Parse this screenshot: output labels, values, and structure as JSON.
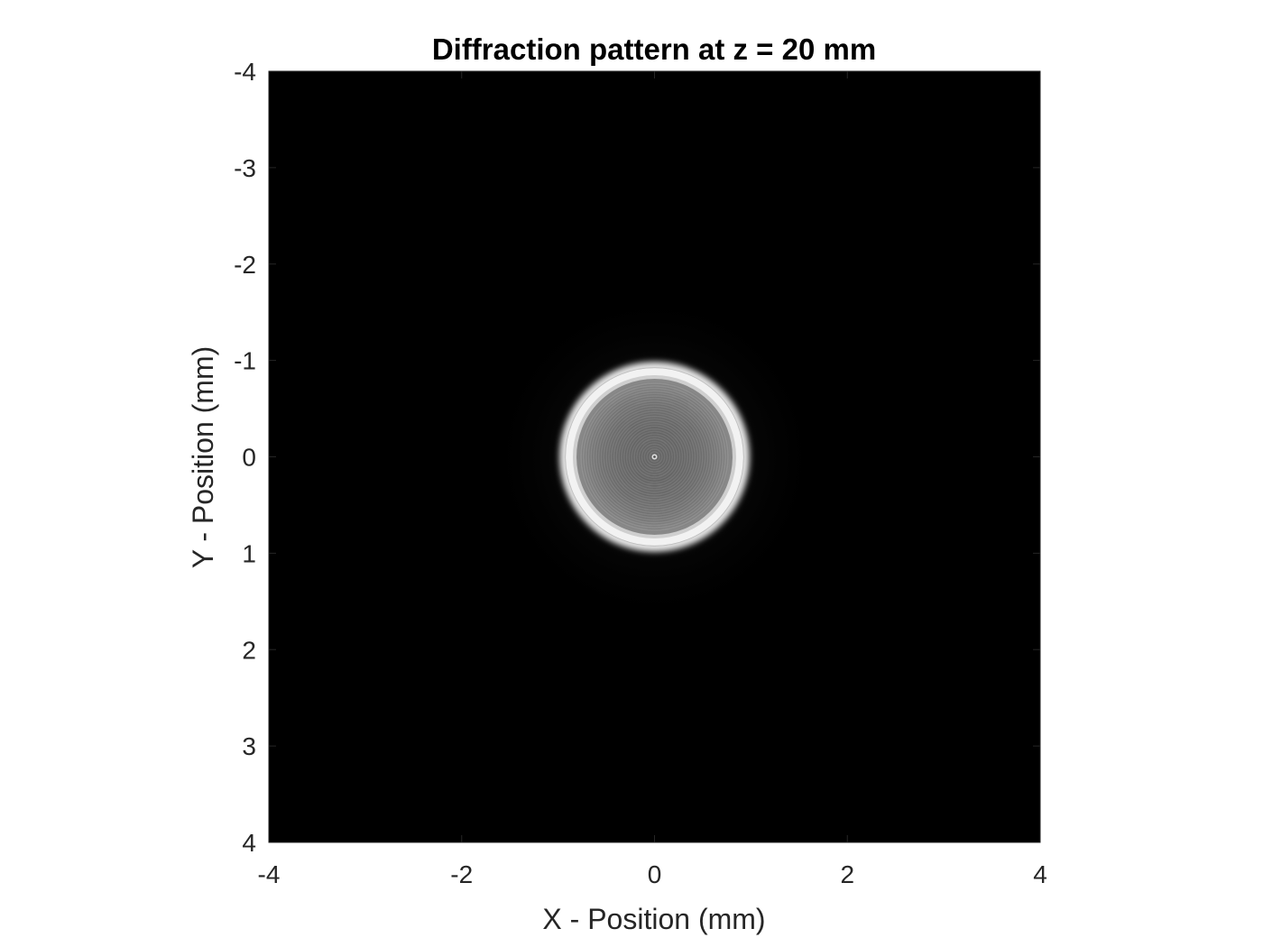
{
  "chart_data": {
    "type": "heatmap",
    "title": "Diffraction pattern at z = 20 mm",
    "xlabel": "X - Position (mm)",
    "ylabel": "Y - Position (mm)",
    "xlim": [
      -4,
      4
    ],
    "ylim": [
      -4,
      4
    ],
    "y_direction": "reversed (top is -4, bottom is 4)",
    "x_ticks": [
      -4,
      -2,
      0,
      2,
      4
    ],
    "x_tick_labels": [
      "-4",
      "-2",
      "0",
      "2",
      "4"
    ],
    "y_ticks": [
      -4,
      -3,
      -2,
      -1,
      0,
      1,
      2,
      3,
      4
    ],
    "y_tick_labels": [
      "-4",
      "-3",
      "-2",
      "-1",
      "0",
      "1",
      "2",
      "3",
      "4"
    ],
    "colormap": "gray",
    "background_color": "#000000",
    "grid": false,
    "pattern": {
      "shape": "circular disk with concentric fringes",
      "center": [
        0,
        0
      ],
      "radius": 0.92,
      "edge_ring_intensity": 1.0,
      "interior_mean_intensity": 0.6,
      "outside_intensity": 0.0
    }
  }
}
